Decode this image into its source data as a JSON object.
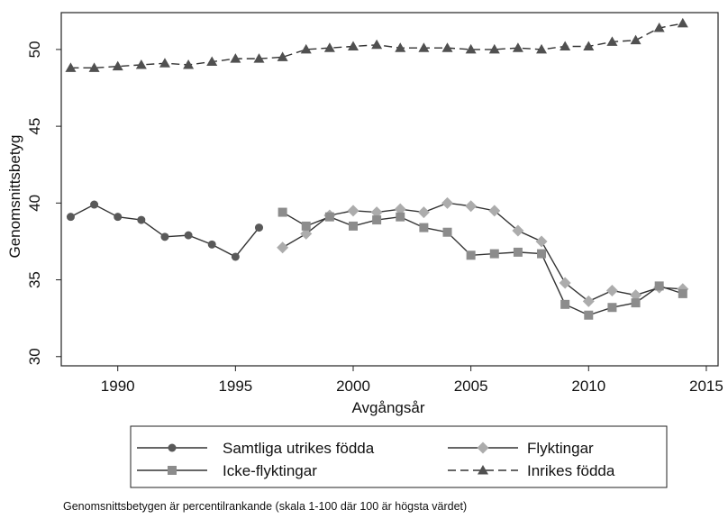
{
  "chart_data": {
    "type": "line",
    "y_label": "Genomsnittsbetyg",
    "x_label": "Avgångsår",
    "note": "Genomsnittsbetygen är percentilrankande (skala 1-100 där 100 är högsta värdet)",
    "x": [
      1988,
      1989,
      1990,
      1991,
      1992,
      1993,
      1994,
      1995,
      1996,
      1997,
      1998,
      1999,
      2000,
      2001,
      2002,
      2003,
      2004,
      2005,
      2006,
      2007,
      2008,
      2009,
      2010,
      2011,
      2012,
      2013,
      2014
    ],
    "series": [
      {
        "name": "Samtliga utrikes födda",
        "color": "#595959",
        "marker": "circle",
        "dashed": false,
        "values": [
          39.1,
          39.9,
          39.1,
          38.9,
          37.8,
          37.9,
          37.3,
          36.5,
          38.4,
          null,
          null,
          null,
          null,
          null,
          null,
          null,
          null,
          null,
          null,
          null,
          null,
          null,
          null,
          null,
          null,
          null,
          null
        ]
      },
      {
        "name": "Flyktingar",
        "color": "#acacac",
        "marker": "diamond",
        "dashed": false,
        "values": [
          null,
          null,
          null,
          null,
          null,
          null,
          null,
          null,
          null,
          37.1,
          38.0,
          39.2,
          39.5,
          39.4,
          39.6,
          39.4,
          40.0,
          39.8,
          39.5,
          38.2,
          37.5,
          34.8,
          33.6,
          34.3,
          34.0,
          34.5,
          34.4
        ]
      },
      {
        "name": "Icke-flyktingar",
        "color": "#8c8c8c",
        "marker": "square",
        "dashed": false,
        "values": [
          null,
          null,
          null,
          null,
          null,
          null,
          null,
          null,
          null,
          39.4,
          38.5,
          39.1,
          38.5,
          38.9,
          39.1,
          38.4,
          38.1,
          36.6,
          36.7,
          36.8,
          36.7,
          33.4,
          32.7,
          33.2,
          33.5,
          34.6,
          34.1
        ]
      },
      {
        "name": "Inrikes födda",
        "color": "#505050",
        "marker": "triangle",
        "dashed": true,
        "values": [
          48.8,
          48.8,
          48.9,
          49.0,
          49.1,
          49.0,
          49.2,
          49.4,
          49.4,
          49.5,
          50.0,
          50.1,
          50.2,
          50.3,
          50.1,
          50.1,
          50.1,
          50.0,
          50.0,
          50.1,
          50.0,
          50.2,
          50.2,
          50.5,
          50.6,
          51.4,
          51.7
        ]
      }
    ],
    "xlim": [
      1987.6,
      2015.5
    ],
    "xticks": [
      1990,
      1995,
      2000,
      2005,
      2010,
      2015
    ],
    "ylim": [
      29.4,
      52.4
    ],
    "yticks": [
      30,
      35,
      40,
      45,
      50
    ],
    "grid": false,
    "legend": "bottom"
  }
}
